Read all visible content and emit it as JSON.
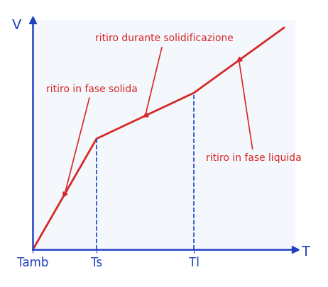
{
  "chart_data": {
    "type": "line",
    "x": [
      0,
      8.5,
      21.5,
      33.5
    ],
    "values": [
      0,
      14.5,
      20.5,
      29
    ],
    "color": "#d62828",
    "xlabel": "T",
    "ylabel": "V",
    "xlim": [
      0,
      35
    ],
    "ylim": [
      0,
      30
    ],
    "xticks": [
      {
        "value": 0,
        "label": "Tamb"
      },
      {
        "value": 8.5,
        "label": "Ts"
      },
      {
        "value": 21.5,
        "label": "Tl"
      }
    ],
    "yticks": [],
    "tick_labels": "x",
    "grid": false,
    "annotations": [
      "ritiro in fase solida",
      "ritiro durante solidificazione",
      "ritiro in fase liquida"
    ]
  }
}
